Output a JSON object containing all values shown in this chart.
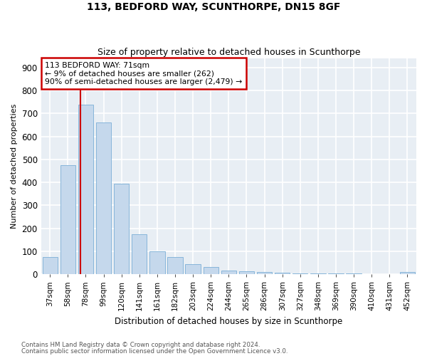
{
  "title1": "113, BEDFORD WAY, SCUNTHORPE, DN15 8GF",
  "title2": "Size of property relative to detached houses in Scunthorpe",
  "xlabel": "Distribution of detached houses by size in Scunthorpe",
  "ylabel": "Number of detached properties",
  "categories": [
    "37sqm",
    "58sqm",
    "78sqm",
    "99sqm",
    "120sqm",
    "141sqm",
    "161sqm",
    "182sqm",
    "203sqm",
    "224sqm",
    "244sqm",
    "265sqm",
    "286sqm",
    "307sqm",
    "327sqm",
    "348sqm",
    "369sqm",
    "390sqm",
    "410sqm",
    "431sqm",
    "452sqm"
  ],
  "values": [
    75,
    475,
    740,
    660,
    395,
    175,
    100,
    75,
    45,
    30,
    15,
    12,
    10,
    6,
    4,
    3,
    2,
    2,
    1,
    1,
    8
  ],
  "bar_color": "#c5d8ec",
  "bar_edge_color": "#7aaed6",
  "vline_x": 1.72,
  "vline_color": "#cc0000",
  "annotation_lines": [
    "113 BEDFORD WAY: 71sqm",
    "← 9% of detached houses are smaller (262)",
    "90% of semi-detached houses are larger (2,479) →"
  ],
  "annotation_box_color": "#ffffff",
  "annotation_box_edge": "#cc0000",
  "plot_bg_color": "#e8eef4",
  "fig_bg_color": "#ffffff",
  "grid_color": "#ffffff",
  "footnote1": "Contains HM Land Registry data © Crown copyright and database right 2024.",
  "footnote2": "Contains public sector information licensed under the Open Government Licence v3.0.",
  "ylim": [
    0,
    940
  ],
  "yticks": [
    0,
    100,
    200,
    300,
    400,
    500,
    600,
    700,
    800,
    900
  ]
}
